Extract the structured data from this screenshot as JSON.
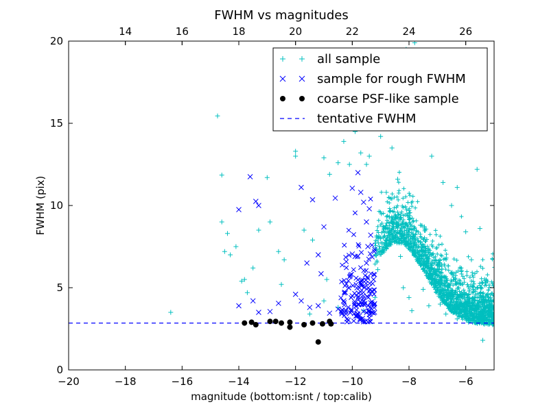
{
  "chart_data": {
    "type": "scatter",
    "title": "FWHM vs magnitudes",
    "xlabel": "magnitude (bottom:isnt / top:calib)",
    "ylabel": "FWHM (pix)",
    "xlim": [
      -20,
      -5
    ],
    "ylim": [
      0,
      20
    ],
    "x_ticks": [
      -20,
      -18,
      -16,
      -14,
      -12,
      -10,
      -8,
      -6
    ],
    "x_tick_labels": [
      "−20",
      "−18",
      "−16",
      "−14",
      "−12",
      "−10",
      "−8",
      "−6"
    ],
    "y_ticks": [
      0,
      5,
      10,
      15,
      20
    ],
    "y_tick_labels": [
      "0",
      "5",
      "10",
      "15",
      "20"
    ],
    "top_axis": {
      "label": "calib",
      "offset": 32,
      "ticks": [
        14,
        16,
        18,
        20,
        22,
        24,
        26
      ],
      "tick_labels": [
        "14",
        "16",
        "18",
        "20",
        "22",
        "24",
        "26"
      ]
    },
    "grid": false,
    "legend_position": "top-right",
    "colors": {
      "all_sample": "#00bfbf",
      "rough": "#0000ff",
      "coarse": "#000000",
      "tentative": "#0000ff"
    },
    "series": [
      {
        "name": "all sample",
        "marker": "plus",
        "points": [
          [
            -14.75,
            15.45
          ],
          [
            -16.4,
            3.5
          ],
          [
            -14.6,
            11.85
          ],
          [
            -14.6,
            9.0
          ],
          [
            -14.4,
            8.3
          ],
          [
            -14.1,
            7.5
          ],
          [
            -14.5,
            7.2
          ],
          [
            -14.3,
            7.0
          ],
          [
            -13.8,
            5.5
          ],
          [
            -13.9,
            5.4
          ],
          [
            -13.5,
            6.2
          ],
          [
            -13.7,
            4.7
          ],
          [
            -13.3,
            8.5
          ],
          [
            -13.0,
            11.7
          ],
          [
            -12.9,
            9.0
          ],
          [
            -12.6,
            7.2
          ],
          [
            -12.4,
            6.7
          ],
          [
            -12.0,
            13.3
          ],
          [
            -12.0,
            13.0
          ],
          [
            -11.7,
            8.5
          ],
          [
            -11.4,
            7.9
          ],
          [
            -11.0,
            12.9
          ],
          [
            -10.8,
            11.9
          ],
          [
            -10.5,
            12.6
          ],
          [
            -10.3,
            13.9
          ],
          [
            -10.1,
            12.5
          ],
          [
            -9.9,
            14.5
          ],
          [
            -9.7,
            13.2
          ],
          [
            -9.5,
            12.5
          ],
          [
            -9.4,
            13.0
          ],
          [
            -9.0,
            14.2
          ],
          [
            -8.8,
            16.1
          ],
          [
            -8.6,
            13.5
          ],
          [
            -8.3,
            17.0
          ],
          [
            -8.1,
            19.5
          ],
          [
            -7.8,
            19.9
          ],
          [
            -7.6,
            18.0
          ],
          [
            -7.4,
            14.7
          ],
          [
            -7.2,
            13.0
          ],
          [
            -6.8,
            11.4
          ],
          [
            -6.5,
            10.0
          ],
          [
            -6.3,
            11.1
          ],
          [
            -6.0,
            8.4
          ],
          [
            -5.8,
            6.7
          ],
          [
            -5.6,
            12.2
          ],
          [
            -5.5,
            8.6
          ],
          [
            -5.3,
            5.3
          ],
          [
            -5.2,
            4.4
          ],
          [
            -5.4,
            1.8
          ],
          [
            -5.6,
            3.0
          ],
          [
            -12.5,
            5.2
          ],
          [
            -11.5,
            3.4
          ],
          [
            -11.0,
            4.2
          ],
          [
            -10.5,
            3.8
          ],
          [
            -10.9,
            5.5
          ],
          [
            -9.6,
            3.6
          ],
          [
            -9.2,
            4.4
          ],
          [
            -9.1,
            6.1
          ],
          [
            -8.9,
            7.3
          ],
          [
            -8.7,
            9.3
          ],
          [
            -8.5,
            8.1
          ],
          [
            -8.3,
            6.9
          ],
          [
            -8.2,
            5.0
          ],
          [
            -8.0,
            4.4
          ],
          [
            -7.9,
            3.6
          ],
          [
            -7.7,
            6.6
          ],
          [
            -7.5,
            4.9
          ],
          [
            -7.3,
            3.9
          ],
          [
            -7.1,
            5.4
          ],
          [
            -6.9,
            4.0
          ],
          [
            -6.7,
            3.4
          ],
          [
            -6.5,
            4.6
          ],
          [
            -6.3,
            3.1
          ],
          [
            -6.1,
            3.7
          ],
          [
            -5.9,
            2.9
          ],
          [
            -8.8,
            10.8
          ],
          [
            -8.4,
            11.6
          ],
          [
            -8.0,
            9.7
          ],
          [
            -7.6,
            8.8
          ],
          [
            -7.2,
            7.6
          ]
        ]
      },
      {
        "name": "sample for rough FWHM",
        "marker": "x",
        "points": [
          [
            -13.6,
            11.75
          ],
          [
            -13.4,
            10.25
          ],
          [
            -13.3,
            10.0
          ],
          [
            -14.0,
            9.75
          ],
          [
            -11.8,
            11.1
          ],
          [
            -11.4,
            10.35
          ],
          [
            -11.0,
            8.7
          ],
          [
            -10.6,
            10.45
          ],
          [
            -10.0,
            11.05
          ],
          [
            -9.8,
            12.0
          ],
          [
            -9.7,
            10.8
          ],
          [
            -9.6,
            10.2
          ],
          [
            -9.4,
            9.8
          ],
          [
            -9.5,
            9.0
          ],
          [
            -9.35,
            8.2
          ],
          [
            -11.6,
            6.5
          ],
          [
            -11.2,
            7.0
          ],
          [
            -11.1,
            5.85
          ],
          [
            -10.0,
            7.05
          ],
          [
            -9.9,
            6.9
          ],
          [
            -9.5,
            6.5
          ],
          [
            -9.45,
            7.5
          ],
          [
            -14.0,
            3.9
          ],
          [
            -13.5,
            4.2
          ],
          [
            -13.3,
            3.5
          ],
          [
            -12.9,
            3.55
          ],
          [
            -12.6,
            4.05
          ],
          [
            -12.0,
            4.6
          ],
          [
            -11.8,
            4.2
          ],
          [
            -11.5,
            3.8
          ],
          [
            -11.2,
            3.9
          ],
          [
            -10.8,
            3.45
          ],
          [
            -10.5,
            3.7
          ],
          [
            -10.3,
            4.2
          ],
          [
            -10.0,
            4.5
          ],
          [
            -9.8,
            3.3
          ],
          [
            -9.6,
            4.0
          ],
          [
            -9.4,
            3.6
          ],
          [
            -9.3,
            4.8
          ],
          [
            -9.25,
            5.5
          ]
        ]
      },
      {
        "name": "coarse PSF-like sample",
        "marker": "dot",
        "points": [
          [
            -13.8,
            2.85
          ],
          [
            -13.55,
            2.9
          ],
          [
            -13.4,
            2.75
          ],
          [
            -12.9,
            2.95
          ],
          [
            -12.7,
            2.95
          ],
          [
            -12.5,
            2.85
          ],
          [
            -12.2,
            2.9
          ],
          [
            -12.2,
            2.6
          ],
          [
            -11.7,
            2.75
          ],
          [
            -11.4,
            2.85
          ],
          [
            -11.2,
            1.7
          ],
          [
            -11.05,
            2.8
          ],
          [
            -10.8,
            2.95
          ],
          [
            -10.75,
            2.8
          ]
        ]
      },
      {
        "name": "tentative FWHM",
        "marker": "dashed-line",
        "value": 2.85
      }
    ]
  }
}
